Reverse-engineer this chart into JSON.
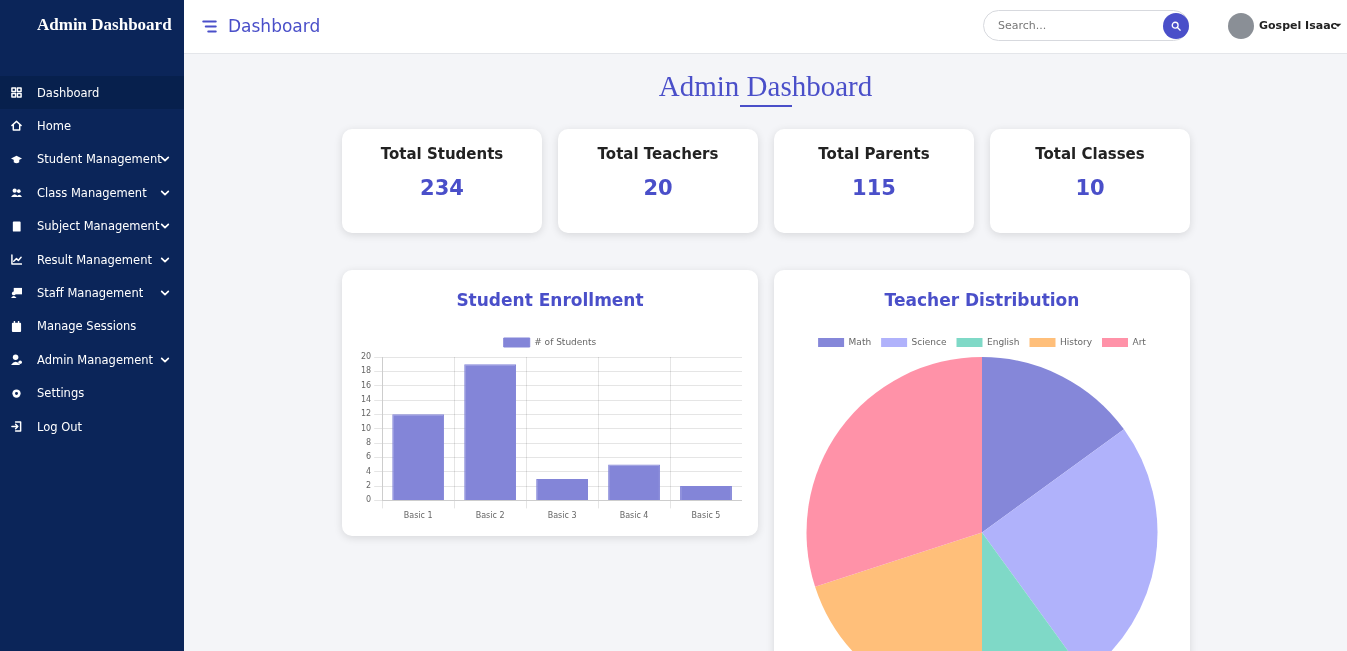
{
  "chart_data": [
    {
      "type": "other",
      "title": "Admin Dashboard",
      "annotations": [
        "Dashboard",
        "Home",
        "Student Management",
        "Class Management",
        "Subject Management",
        "Result Management",
        "Staff Management",
        "Manage Sessions",
        "Admin Management",
        "Settings",
        "Log Out"
      ]
    },
    {
      "type": "other",
      "title": "Dashboard",
      "annotations": [
        "Search...",
        "Gospel Isaac"
      ]
    },
    {
      "type": "other",
      "title": "Admin Dashboard",
      "categories": [
        "Total Students",
        "Total Teachers",
        "Total Parents",
        "Total Classes"
      ],
      "values": [
        234,
        20,
        115,
        10
      ],
      "data_labels": true
    },
    {
      "type": "bar",
      "title": "Student Enrollment",
      "categories": [
        "Basic 1",
        "Basic 2",
        "Basic 3",
        "Basic 4",
        "Basic 5"
      ],
      "series": [
        {
          "name": "# of Students",
          "color": "#8385d8",
          "values": [
            12,
            19,
            3,
            5,
            2
          ]
        }
      ],
      "ylim": [
        0,
        20
      ],
      "yticks": [
        0,
        2,
        4,
        6,
        8,
        10,
        12,
        14,
        16,
        18,
        20
      ],
      "grid": true,
      "legend": "top"
    },
    {
      "type": "pie",
      "title": "Teacher Distribution",
      "categories": [
        "Math",
        "Science",
        "English",
        "History",
        "Art"
      ],
      "values": [
        15,
        25,
        10,
        20,
        30
      ],
      "colors": [
        "#8587d9",
        "#b0b2fb",
        "#7fd9c7",
        "#ffbf7a",
        "#ff92a8"
      ],
      "legend": "top"
    }
  ]
}
